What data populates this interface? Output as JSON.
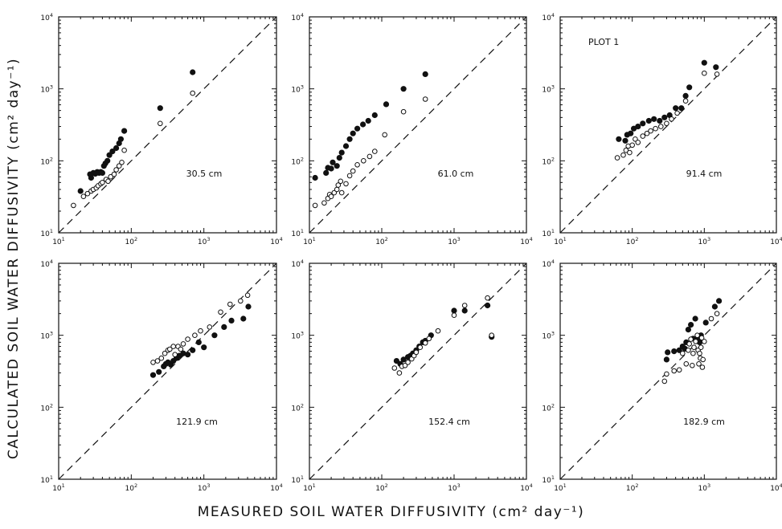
{
  "figure": {
    "ylabel": "CALCULATED SOIL WATER DIFFUSIVITY (cm² day⁻¹)",
    "xlabel": "MEASURED SOIL WATER DIFFUSIVITY (cm² day⁻¹)"
  },
  "chart_data": [
    {
      "type": "scatter",
      "depth_label": "30.5 cm",
      "plot_label": "",
      "xscale": "log",
      "yscale": "log",
      "xlim": [
        10,
        10000
      ],
      "ylim": [
        10,
        10000
      ],
      "xticks": [
        "10¹",
        "10²",
        "10³",
        "10⁴"
      ],
      "yticks": [
        "10¹",
        "10²",
        "10³",
        "10⁴"
      ],
      "reference_line": "1:1 dashed",
      "series": [
        {
          "marker": "filled",
          "points": [
            [
              20,
              38
            ],
            [
              27,
              65
            ],
            [
              28,
              58
            ],
            [
              30,
              68
            ],
            [
              32,
              66
            ],
            [
              34,
              70
            ],
            [
              36,
              68
            ],
            [
              38,
              70
            ],
            [
              40,
              68
            ],
            [
              42,
              85
            ],
            [
              44,
              92
            ],
            [
              47,
              100
            ],
            [
              50,
              120
            ],
            [
              55,
              135
            ],
            [
              62,
              150
            ],
            [
              68,
              175
            ],
            [
              72,
              200
            ],
            [
              80,
              260
            ],
            [
              250,
              540
            ],
            [
              700,
              1700
            ]
          ]
        },
        {
          "marker": "open",
          "points": [
            [
              16,
              24
            ],
            [
              22,
              32
            ],
            [
              25,
              35
            ],
            [
              28,
              38
            ],
            [
              30,
              40
            ],
            [
              33,
              42
            ],
            [
              35,
              45
            ],
            [
              38,
              48
            ],
            [
              40,
              50
            ],
            [
              45,
              55
            ],
            [
              48,
              52
            ],
            [
              52,
              60
            ],
            [
              58,
              65
            ],
            [
              62,
              75
            ],
            [
              68,
              85
            ],
            [
              74,
              95
            ],
            [
              80,
              140
            ],
            [
              250,
              330
            ],
            [
              700,
              870
            ]
          ]
        }
      ]
    },
    {
      "type": "scatter",
      "depth_label": "61.0 cm",
      "plot_label": "",
      "xscale": "log",
      "yscale": "log",
      "xlim": [
        10,
        10000
      ],
      "ylim": [
        10,
        10000
      ],
      "xticks": [
        "10¹",
        "10²",
        "10³",
        "10⁴"
      ],
      "yticks": [
        "10¹",
        "10²",
        "10³",
        "10⁴"
      ],
      "reference_line": "1:1 dashed",
      "series": [
        {
          "marker": "filled",
          "points": [
            [
              12,
              58
            ],
            [
              17,
              68
            ],
            [
              18,
              80
            ],
            [
              20,
              78
            ],
            [
              21,
              95
            ],
            [
              24,
              85
            ],
            [
              26,
              110
            ],
            [
              28,
              130
            ],
            [
              32,
              160
            ],
            [
              36,
              200
            ],
            [
              40,
              240
            ],
            [
              46,
              280
            ],
            [
              55,
              320
            ],
            [
              65,
              360
            ],
            [
              80,
              430
            ],
            [
              115,
              610
            ],
            [
              200,
              1000
            ],
            [
              400,
              1600
            ]
          ]
        },
        {
          "marker": "open",
          "points": [
            [
              12,
              24
            ],
            [
              16,
              26
            ],
            [
              18,
              30
            ],
            [
              19,
              34
            ],
            [
              20,
              32
            ],
            [
              22,
              36
            ],
            [
              24,
              40
            ],
            [
              25,
              46
            ],
            [
              27,
              52
            ],
            [
              28,
              36
            ],
            [
              32,
              48
            ],
            [
              36,
              62
            ],
            [
              40,
              72
            ],
            [
              46,
              88
            ],
            [
              56,
              100
            ],
            [
              68,
              115
            ],
            [
              80,
              135
            ],
            [
              110,
              230
            ],
            [
              200,
              480
            ],
            [
              400,
              720
            ]
          ]
        }
      ]
    },
    {
      "type": "scatter",
      "depth_label": "91.4 cm",
      "plot_label": "PLOT 1",
      "xscale": "log",
      "yscale": "log",
      "xlim": [
        10,
        10000
      ],
      "ylim": [
        10,
        10000
      ],
      "xticks": [
        "10¹",
        "10²",
        "10³",
        "10⁴"
      ],
      "yticks": [
        "10¹",
        "10²",
        "10³",
        "10⁴"
      ],
      "reference_line": "1:1 dashed",
      "series": [
        {
          "marker": "filled",
          "points": [
            [
              65,
              200
            ],
            [
              80,
              190
            ],
            [
              85,
              230
            ],
            [
              95,
              240
            ],
            [
              105,
              280
            ],
            [
              120,
              300
            ],
            [
              140,
              330
            ],
            [
              170,
              360
            ],
            [
              200,
              380
            ],
            [
              240,
              360
            ],
            [
              280,
              400
            ],
            [
              330,
              430
            ],
            [
              400,
              540
            ],
            [
              480,
              540
            ],
            [
              550,
              800
            ],
            [
              620,
              1050
            ],
            [
              1000,
              2300
            ],
            [
              1450,
              2000
            ]
          ]
        },
        {
          "marker": "open",
          "points": [
            [
              62,
              110
            ],
            [
              75,
              120
            ],
            [
              82,
              140
            ],
            [
              88,
              160
            ],
            [
              92,
              130
            ],
            [
              100,
              165
            ],
            [
              110,
              200
            ],
            [
              120,
              180
            ],
            [
              140,
              220
            ],
            [
              160,
              240
            ],
            [
              180,
              260
            ],
            [
              210,
              280
            ],
            [
              250,
              300
            ],
            [
              300,
              330
            ],
            [
              350,
              380
            ],
            [
              420,
              460
            ],
            [
              550,
              680
            ],
            [
              1000,
              1650
            ],
            [
              1500,
              1600
            ]
          ]
        }
      ]
    },
    {
      "type": "scatter",
      "depth_label": "121.9 cm",
      "plot_label": "",
      "xscale": "log",
      "yscale": "log",
      "xlim": [
        10,
        10000
      ],
      "ylim": [
        10,
        10000
      ],
      "xticks": [
        "10¹",
        "10²",
        "10³",
        "10⁴"
      ],
      "yticks": [
        "10¹",
        "10²",
        "10³",
        "10⁴"
      ],
      "reference_line": "1:1 dashed",
      "series": [
        {
          "marker": "filled",
          "points": [
            [
              200,
              280
            ],
            [
              240,
              310
            ],
            [
              280,
              370
            ],
            [
              300,
              400
            ],
            [
              320,
              420
            ],
            [
              350,
              390
            ],
            [
              380,
              440
            ],
            [
              420,
              480
            ],
            [
              460,
              520
            ],
            [
              520,
              560
            ],
            [
              600,
              540
            ],
            [
              700,
              620
            ],
            [
              850,
              800
            ],
            [
              1000,
              680
            ],
            [
              1400,
              1000
            ],
            [
              1900,
              1300
            ],
            [
              2400,
              1600
            ],
            [
              3500,
              1700
            ],
            [
              4100,
              2500
            ]
          ]
        },
        {
          "marker": "open",
          "points": [
            [
              200,
              420
            ],
            [
              230,
              440
            ],
            [
              260,
              480
            ],
            [
              290,
              560
            ],
            [
              320,
              620
            ],
            [
              340,
              640
            ],
            [
              380,
              700
            ],
            [
              400,
              540
            ],
            [
              440,
              700
            ],
            [
              480,
              640
            ],
            [
              520,
              760
            ],
            [
              600,
              880
            ],
            [
              750,
              1000
            ],
            [
              900,
              1150
            ],
            [
              1200,
              1300
            ],
            [
              1700,
              2100
            ],
            [
              2300,
              2700
            ],
            [
              3200,
              3000
            ],
            [
              4000,
              3600
            ]
          ]
        }
      ]
    },
    {
      "type": "scatter",
      "depth_label": "152.4 cm",
      "plot_label": "",
      "xscale": "log",
      "yscale": "log",
      "xlim": [
        10,
        10000
      ],
      "ylim": [
        10,
        10000
      ],
      "xticks": [
        "10¹",
        "10²",
        "10³",
        "10⁴"
      ],
      "yticks": [
        "10¹",
        "10²",
        "10³",
        "10⁴"
      ],
      "reference_line": "1:1 dashed",
      "series": [
        {
          "marker": "filled",
          "points": [
            [
              160,
              440
            ],
            [
              180,
              400
            ],
            [
              200,
              460
            ],
            [
              230,
              500
            ],
            [
              250,
              520
            ],
            [
              270,
              560
            ],
            [
              300,
              620
            ],
            [
              330,
              700
            ],
            [
              370,
              800
            ],
            [
              400,
              840
            ],
            [
              480,
              1000
            ],
            [
              1000,
              2200
            ],
            [
              1400,
              2200
            ],
            [
              2900,
              2600
            ],
            [
              3300,
              950
            ]
          ]
        },
        {
          "marker": "open",
          "points": [
            [
              150,
              350
            ],
            [
              175,
              300
            ],
            [
              190,
              370
            ],
            [
              210,
              380
            ],
            [
              230,
              420
            ],
            [
              260,
              470
            ],
            [
              280,
              520
            ],
            [
              300,
              580
            ],
            [
              340,
              680
            ],
            [
              400,
              780
            ],
            [
              450,
              900
            ],
            [
              600,
              1150
            ],
            [
              1000,
              1900
            ],
            [
              1400,
              2600
            ],
            [
              2900,
              3300
            ],
            [
              3300,
              1000
            ]
          ]
        }
      ]
    },
    {
      "type": "scatter",
      "depth_label": "182.9 cm",
      "plot_label": "",
      "xscale": "log",
      "yscale": "log",
      "xlim": [
        10,
        10000
      ],
      "ylim": [
        10,
        10000
      ],
      "xticks": [
        "10¹",
        "10²",
        "10³",
        "10⁴"
      ],
      "yticks": [
        "10¹",
        "10²",
        "10³",
        "10⁴"
      ],
      "reference_line": "1:1 dashed",
      "series": [
        {
          "marker": "filled",
          "points": [
            [
              300,
              460
            ],
            [
              310,
              580
            ],
            [
              380,
              600
            ],
            [
              450,
              620
            ],
            [
              500,
              700
            ],
            [
              540,
              650
            ],
            [
              560,
              800
            ],
            [
              600,
              1200
            ],
            [
              650,
              1400
            ],
            [
              700,
              900
            ],
            [
              750,
              1700
            ],
            [
              800,
              880
            ],
            [
              860,
              800
            ],
            [
              900,
              1000
            ],
            [
              1050,
              1500
            ],
            [
              1400,
              2500
            ],
            [
              1600,
              3000
            ]
          ]
        },
        {
          "marker": "open",
          "points": [
            [
              280,
              230
            ],
            [
              300,
              290
            ],
            [
              380,
              320
            ],
            [
              450,
              330
            ],
            [
              500,
              560
            ],
            [
              560,
              400
            ],
            [
              600,
              620
            ],
            [
              620,
              760
            ],
            [
              650,
              880
            ],
            [
              680,
              380
            ],
            [
              700,
              560
            ],
            [
              720,
              680
            ],
            [
              760,
              820
            ],
            [
              800,
              1000
            ],
            [
              820,
              620
            ],
            [
              840,
              400
            ],
            [
              860,
              560
            ],
            [
              880,
              480
            ],
            [
              900,
              680
            ],
            [
              920,
              920
            ],
            [
              940,
              360
            ],
            [
              960,
              460
            ],
            [
              1000,
              820
            ],
            [
              1250,
              1700
            ],
            [
              1500,
              2000
            ]
          ]
        }
      ]
    }
  ]
}
